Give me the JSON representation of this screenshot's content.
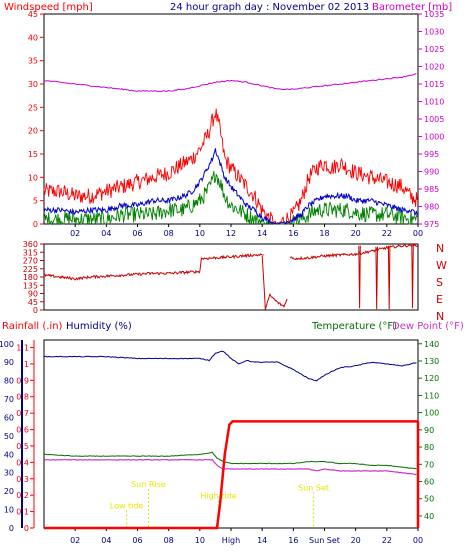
{
  "colors": {
    "background": "#ffffff",
    "plot_bg": "#ffffff",
    "axis": "#000000",
    "wind_speed": "#ff0000",
    "wind_avg": "#0000cc",
    "wind_gust": "#008000",
    "barometer": "#cc00cc",
    "direction": "#cc0000",
    "rainfall": "#ff0000",
    "humidity": "#00008b",
    "temperature": "#007000",
    "dewpoint": "#cc33cc",
    "tide_label": "#e6e600",
    "grid": "#dddddd"
  },
  "chart_data": [
    {
      "type": "line",
      "title": "24 hour graph day : November 02 2013",
      "ylabel_left": "Windspeed [mph]",
      "ylabel_right": "Barometer [mb]",
      "x_ticks": [
        "02",
        "04",
        "06",
        "08",
        "10",
        "12",
        "14",
        "16",
        "18",
        "20",
        "22",
        "00"
      ],
      "y_left_ticks": [
        "0",
        "5",
        "10",
        "15",
        "20",
        "25",
        "30",
        "35",
        "40",
        "45"
      ],
      "y_right_ticks": [
        "975",
        "980",
        "985",
        "990",
        "995",
        "1000",
        "1005",
        "1010",
        "1015",
        "1020",
        "1025",
        "1030",
        "1035"
      ],
      "ylim_left": [
        0,
        45
      ],
      "ylim_right": [
        975,
        1035
      ],
      "series": [
        {
          "key": "max",
          "values_hours": [
            0,
            1,
            2,
            3,
            4,
            5,
            6,
            7,
            8,
            9,
            9.5,
            10,
            10.5,
            10.8,
            11,
            11.3,
            11.6,
            12,
            12.5,
            13,
            13.5,
            14,
            14.5,
            15,
            15.5,
            16,
            16.5,
            17,
            17.5,
            18,
            18.5,
            19,
            19.5,
            20,
            21,
            22,
            23,
            23.5,
            24
          ],
          "values": [
            7,
            7,
            6,
            6,
            7,
            8,
            9,
            10,
            11,
            13,
            14,
            16,
            19,
            22,
            24,
            20,
            14,
            12,
            10,
            8,
            6,
            3,
            1,
            0,
            1,
            2,
            5,
            10,
            12,
            13,
            12,
            13,
            12,
            11,
            10,
            9,
            8,
            6,
            5
          ]
        },
        {
          "key": "avg",
          "values_hours": [
            0,
            1,
            2,
            3,
            4,
            5,
            6,
            7,
            8,
            9,
            9.5,
            10,
            10.5,
            10.8,
            11,
            11.3,
            11.6,
            12,
            12.5,
            13,
            13.5,
            14,
            14.5,
            15,
            15.5,
            16,
            16.5,
            17,
            17.5,
            18,
            18.5,
            19,
            19.5,
            20,
            21,
            22,
            23,
            23.5,
            24
          ],
          "values": [
            3,
            3,
            2.5,
            3,
            3,
            4,
            4,
            5,
            5,
            6,
            7,
            9,
            12,
            14,
            16,
            13,
            10,
            8,
            6,
            4,
            3,
            1.5,
            0.5,
            0,
            0.5,
            1,
            2,
            4,
            5,
            6,
            6,
            6,
            6,
            5,
            5,
            4,
            3,
            3,
            2
          ]
        },
        {
          "key": "min",
          "values_hours": [
            0,
            1,
            2,
            3,
            4,
            5,
            6,
            7,
            8,
            9,
            9.5,
            10,
            10.5,
            10.8,
            11,
            11.3,
            11.6,
            12,
            12.5,
            13,
            13.5,
            14,
            14.5,
            15,
            15.5,
            16,
            16.5,
            17,
            17.5,
            18,
            18.5,
            19,
            19.5,
            20,
            21,
            22,
            23,
            23.5,
            24
          ],
          "values": [
            1,
            1,
            1,
            1,
            1,
            2,
            2,
            2,
            3,
            3,
            4,
            5,
            7,
            9,
            11,
            9,
            6,
            4,
            3,
            2,
            1,
            0.5,
            0,
            0,
            0,
            0.5,
            1,
            2,
            3,
            3,
            3,
            3,
            3,
            2.5,
            2,
            2,
            1.5,
            1,
            1
          ]
        },
        {
          "key": "barometer",
          "axis": "right",
          "values_hours": [
            0,
            2,
            4,
            6,
            8,
            9,
            10,
            11,
            12,
            13,
            14,
            15,
            16,
            17,
            18,
            19,
            20,
            21,
            22,
            23,
            24
          ],
          "values": [
            1016,
            1015,
            1014,
            1013,
            1013,
            1013.5,
            1014.5,
            1015.5,
            1016,
            1015.5,
            1014.5,
            1013.5,
            1013.5,
            1014,
            1014.5,
            1015,
            1015.5,
            1016,
            1016.5,
            1017,
            1018
          ]
        }
      ]
    },
    {
      "type": "line",
      "title": "",
      "y_ticks": [
        "0",
        "45",
        "90",
        "135",
        "180",
        "225",
        "270",
        "315",
        "360"
      ],
      "y_labels_right": [
        "N",
        "W",
        "S",
        "E",
        "N"
      ],
      "ylim": [
        0,
        360
      ],
      "segments": [
        {
          "hours": [
            0,
            0.5,
            1,
            2,
            3,
            4,
            5,
            6,
            7,
            8,
            9,
            10
          ],
          "values": [
            190,
            185,
            180,
            170,
            180,
            185,
            190,
            195,
            200,
            200,
            205,
            210
          ]
        },
        {
          "hours": [
            10,
            10.1,
            12,
            13.5,
            14,
            14.1
          ],
          "values": [
            210,
            280,
            290,
            300,
            300,
            300
          ]
        },
        {
          "hours": [
            14,
            14.2,
            14.5,
            15,
            15.4,
            15.6
          ],
          "values": [
            300,
            10,
            80,
            40,
            20,
            60
          ]
        },
        {
          "hours": [
            15.8,
            16,
            17,
            18,
            19,
            20,
            21,
            22,
            23,
            24
          ],
          "values": [
            290,
            280,
            285,
            295,
            300,
            305,
            320,
            340,
            350,
            355
          ]
        },
        {
          "hours": [
            20.2,
            20.25,
            20.3
          ],
          "values": [
            350,
            10,
            350
          ]
        },
        {
          "hours": [
            21.3,
            21.35,
            21.4
          ],
          "values": [
            345,
            5,
            345
          ]
        },
        {
          "hours": [
            22.1,
            22.15,
            22.2
          ],
          "values": [
            350,
            5,
            350
          ]
        },
        {
          "hours": [
            23.6,
            23.65,
            23.7
          ],
          "values": [
            355,
            10,
            355
          ]
        }
      ]
    },
    {
      "type": "line",
      "title": "",
      "ylabel_left_1": "Rainfall (.in)",
      "ylabel_left_2": "Humidity (%)",
      "ylabel_right_1": "Temperature (°F)",
      "ylabel_right_2": "Dew Point (°F)",
      "x_ticks": [
        "02",
        "04",
        "06",
        "08",
        "10",
        "High",
        "14",
        "16",
        "Sun Set",
        "20",
        "22",
        "00"
      ],
      "x_ticks_extra": [
        "Low",
        "Sun",
        "Sun"
      ],
      "rain_ticks": [
        "0",
        "0.1",
        "0.2",
        "0.3",
        "0.4",
        "0.5",
        "0.6",
        "0.7",
        "0.8",
        "0.9",
        "1",
        "1.1"
      ],
      "humidity_ticks": [
        "0",
        "10",
        "20",
        "30",
        "40",
        "50",
        "60",
        "70",
        "80",
        "90",
        "100"
      ],
      "temp_ticks": [
        "40",
        "50",
        "60",
        "70",
        "80",
        "90",
        "100",
        "110",
        "120",
        "130",
        "140"
      ],
      "annotations": [
        {
          "label": "Low tide",
          "hour": 5.3,
          "y_rain": 0.12
        },
        {
          "label": "Sun Rise",
          "hour": 6.7,
          "y_rain": 0.25
        },
        {
          "label": "High tide",
          "hour": 11.2,
          "y_rain": 0.18
        },
        {
          "label": "Sun Set",
          "hour": 17.3,
          "y_rain": 0.23
        }
      ],
      "rainfall": {
        "hours": [
          0,
          11.1,
          11.3,
          11.6,
          11.9,
          12.1,
          24
        ],
        "values": [
          0,
          0,
          0.15,
          0.45,
          0.63,
          0.65,
          0.65
        ]
      },
      "humidity": {
        "hours": [
          0,
          2,
          4,
          6,
          8,
          9,
          10,
          10.6,
          11,
          11.5,
          12,
          12.5,
          13,
          13.5,
          14,
          15,
          16,
          17,
          17.5,
          18,
          18.5,
          19,
          20,
          21,
          22,
          23,
          24
        ],
        "values": [
          93,
          93,
          93,
          92,
          92,
          92,
          92,
          91,
          95,
          96,
          92,
          89,
          91,
          90,
          90,
          90,
          86,
          81,
          80,
          83,
          85,
          87,
          88,
          90,
          89,
          88,
          90
        ]
      },
      "temperature": {
        "hours": [
          0,
          2,
          4,
          6,
          8,
          10,
          10.8,
          11.1,
          11.5,
          12,
          13,
          14,
          15,
          16,
          17,
          18,
          19,
          20,
          21,
          22,
          23,
          24
        ],
        "values": [
          40,
          39,
          39,
          39,
          39,
          40,
          41,
          38,
          36,
          35,
          35,
          35,
          35,
          35,
          36,
          36,
          35,
          35,
          34,
          34,
          33,
          32
        ]
      },
      "dewpoint": {
        "hours": [
          0,
          2,
          4,
          6,
          8,
          10,
          10.8,
          11.1,
          11.5,
          12,
          13,
          14,
          15,
          16,
          17,
          17.5,
          18,
          19,
          20,
          21,
          22,
          23,
          24
        ],
        "values": [
          37,
          37,
          37,
          37,
          37,
          37,
          37,
          34,
          32,
          32,
          32,
          32,
          32,
          32,
          32,
          31,
          32,
          31,
          31,
          31,
          31,
          30,
          29
        ]
      }
    }
  ]
}
